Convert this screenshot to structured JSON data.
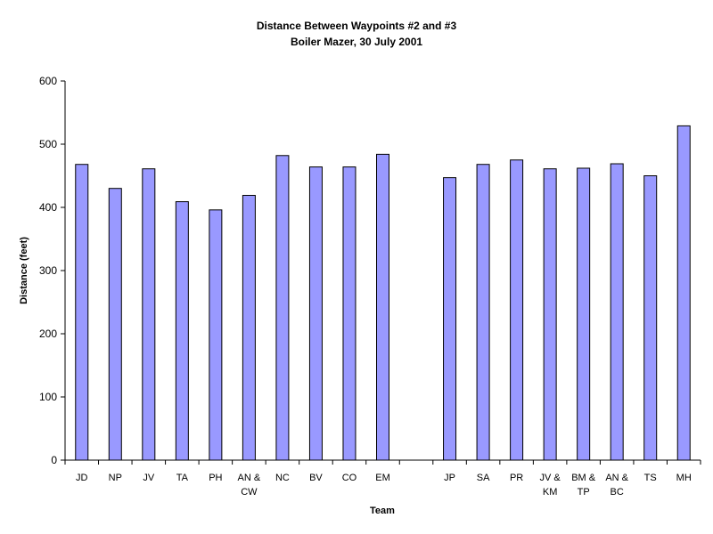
{
  "chart_data": {
    "type": "bar",
    "title": "Distance Between Waypoints #2 and #3",
    "subtitle": "Boiler Mazer, 30 July 2001",
    "xlabel": "Team",
    "ylabel": "Distance (feet)",
    "ylim": [
      0,
      600
    ],
    "yticks": [
      "0",
      "100",
      "200",
      "300",
      "400",
      "500",
      "600"
    ],
    "grid": false,
    "legend": "none",
    "bar_color": "#9999ff",
    "categories": [
      [
        "JD"
      ],
      [
        "NP"
      ],
      [
        "JV"
      ],
      [
        "TA"
      ],
      [
        "PH"
      ],
      [
        "AN &",
        "CW"
      ],
      [
        "NC"
      ],
      [
        "BV"
      ],
      [
        "CO"
      ],
      [
        "EM"
      ],
      [
        ""
      ],
      [
        "JP"
      ],
      [
        "SA"
      ],
      [
        "PR"
      ],
      [
        "JV &",
        "KM"
      ],
      [
        "BM &",
        "TP"
      ],
      [
        "AN &",
        "BC"
      ],
      [
        "TS"
      ],
      [
        "MH"
      ]
    ],
    "values": [
      468,
      430,
      461,
      409,
      396,
      419,
      482,
      464,
      464,
      484,
      null,
      447,
      468,
      475,
      461,
      462,
      469,
      450,
      529
    ]
  }
}
